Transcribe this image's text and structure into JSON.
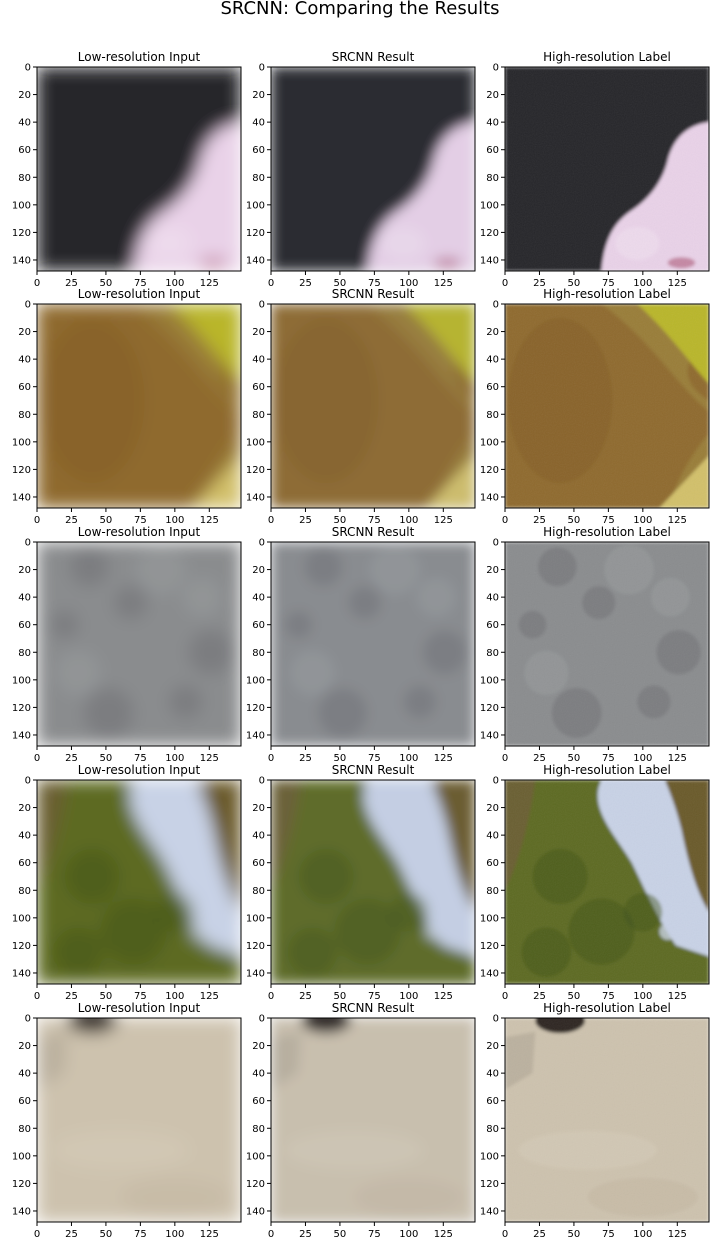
{
  "figure": {
    "suptitle": "SRCNN: Comparing the Results"
  },
  "chart_data": {
    "type": "image-grid",
    "title": "SRCNN: Comparing the Results",
    "columns": [
      "Low-resolution Input",
      "SRCNN Result",
      "High-resolution Label"
    ],
    "xlim": [
      0,
      148
    ],
    "ylim": [
      148,
      0
    ],
    "xticks": [
      0,
      25,
      50,
      75,
      100,
      125
    ],
    "yticks": [
      0,
      20,
      40,
      60,
      80,
      100,
      120,
      140
    ],
    "rows": [
      {
        "subject": "pink object on dark background",
        "colors": {
          "bg": "#26272b",
          "subject": "#e9d2e8"
        }
      },
      {
        "subject": "brown leaf with yellow-green stripe",
        "colors": {
          "bg": "#8f6a2d",
          "stripe": "#b9b62a"
        }
      },
      {
        "subject": "gray texture",
        "colors": {
          "bg": "#8a8c8e"
        }
      },
      {
        "subject": "green tree against sky",
        "colors": {
          "tree": "#5d6a22",
          "sky": "#c8d2e6"
        }
      },
      {
        "subject": "beige sand with dark object",
        "colors": {
          "bg": "#cdc2ae",
          "dark": "#2e2622"
        }
      }
    ],
    "grid": false
  }
}
